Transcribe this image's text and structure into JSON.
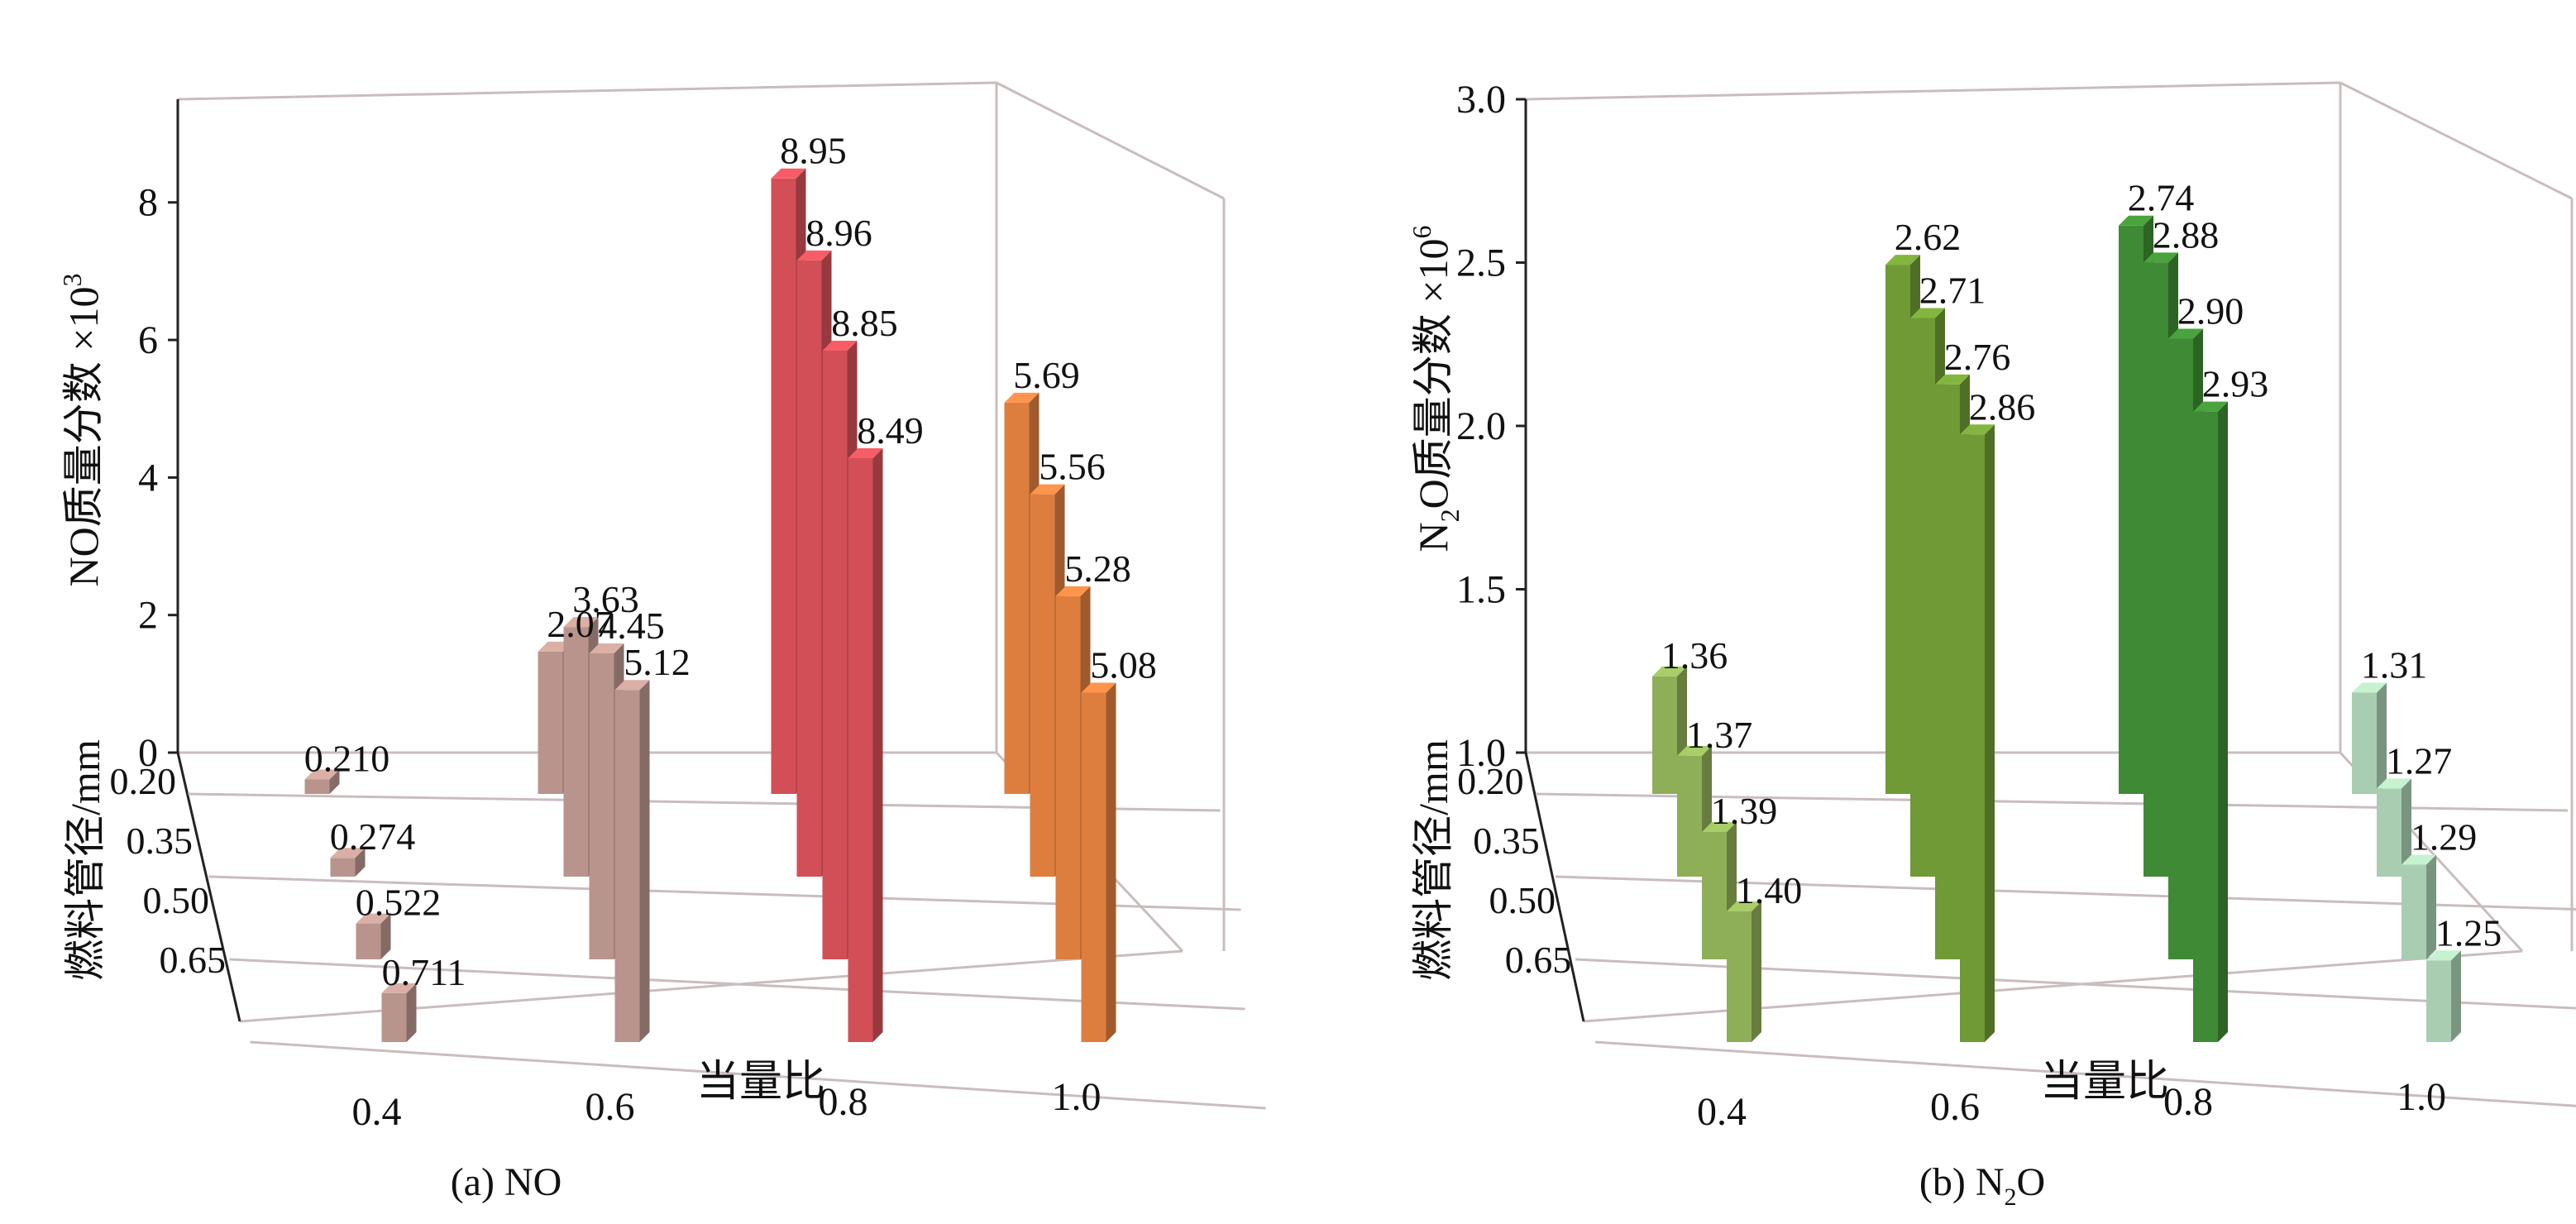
{
  "figure": {
    "caption_a_prefix": "(a) ",
    "caption_a_main": "NO",
    "caption_b_prefix": "(b) N",
    "caption_b_sub": "2",
    "caption_b_suffix": "O"
  },
  "chart_data": [
    {
      "type": "bar3d",
      "panel": "a",
      "ylabel_main": "NO质量分数 ×10",
      "ylabel_sup": "3",
      "xlabel": "当量比",
      "zlabel": "燃料管径/mm",
      "ylim": [
        0,
        9.5
      ],
      "yticks": [
        "0",
        "2",
        "4",
        "6",
        "8"
      ],
      "ytick_values": [
        0,
        2,
        4,
        6,
        8
      ],
      "x_categories": [
        "0.4",
        "0.6",
        "0.8",
        "1.0"
      ],
      "z_categories": [
        "0.20",
        "0.35",
        "0.50",
        "0.65"
      ],
      "colors": [
        "#b9948c",
        "#d24f57",
        "#dd7e3f"
      ],
      "series": [
        {
          "name": "0.4",
          "values": [
            0.21,
            0.274,
            0.522,
            0.711
          ],
          "labels": [
            "0.210",
            "0.274",
            "0.522",
            "0.711"
          ]
        },
        {
          "name": "0.6",
          "values": [
            2.07,
            3.63,
            4.45,
            5.12
          ],
          "labels": [
            "2.07",
            "3.63",
            "4.45",
            "5.12"
          ]
        },
        {
          "name": "0.8",
          "values": [
            8.95,
            8.96,
            8.85,
            8.49
          ],
          "labels": [
            "8.95",
            "8.96",
            "8.85",
            "8.49"
          ]
        },
        {
          "name": "1.0",
          "values": [
            5.69,
            5.56,
            5.28,
            5.08
          ],
          "labels": [
            "5.69",
            "5.56",
            "5.28",
            "5.08"
          ]
        }
      ]
    },
    {
      "type": "bar3d",
      "panel": "b",
      "ylabel_pre": "N",
      "ylabel_sub": "2",
      "ylabel_main": "O质量分数 ×10",
      "ylabel_sup": "6",
      "xlabel": "当量比",
      "zlabel": "燃料管径/mm",
      "ylim": [
        1.0,
        3.0
      ],
      "yticks": [
        "1.0",
        "1.5",
        "2.0",
        "2.5",
        "3.0"
      ],
      "ytick_values": [
        1.0,
        1.5,
        2.0,
        2.5,
        3.0
      ],
      "x_categories": [
        "0.4",
        "0.6",
        "0.8",
        "1.0"
      ],
      "z_categories": [
        "0.20",
        "0.35",
        "0.50",
        "0.65"
      ],
      "colors": [
        "#8fae58",
        "#6f9a35",
        "#3f8a34",
        "#a8cdb0"
      ],
      "series": [
        {
          "name": "0.4",
          "values": [
            1.36,
            1.37,
            1.39,
            1.4
          ],
          "labels": [
            "1.36",
            "1.37",
            "1.39",
            "1.40"
          ]
        },
        {
          "name": "0.6",
          "values": [
            2.62,
            2.71,
            2.76,
            2.86
          ],
          "labels": [
            "2.62",
            "2.71",
            "2.76",
            "2.86"
          ]
        },
        {
          "name": "0.8",
          "values": [
            2.74,
            2.88,
            2.9,
            2.93
          ],
          "labels": [
            "2.74",
            "2.88",
            "2.90",
            "2.93"
          ]
        },
        {
          "name": "1.0",
          "values": [
            1.31,
            1.27,
            1.29,
            1.25
          ],
          "labels": [
            "1.31",
            "1.27",
            "1.29",
            "1.25"
          ]
        }
      ]
    }
  ]
}
